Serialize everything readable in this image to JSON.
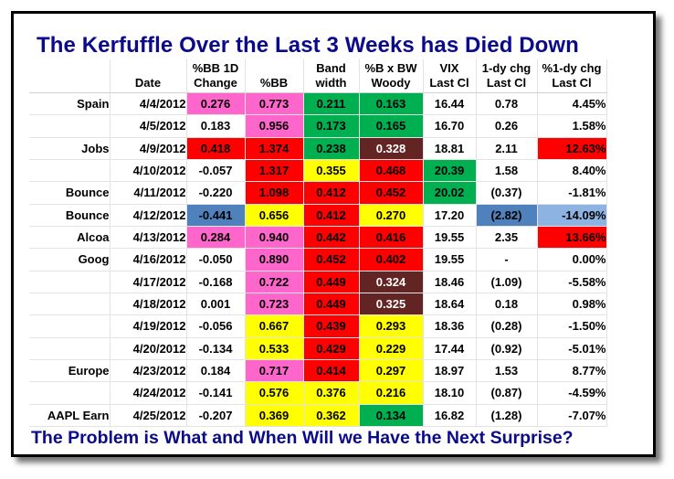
{
  "title": "The Kerfuffle Over the Last 3 Weeks has Died Down",
  "subtitle": "The Problem is What and When Will we Have the Next Surprise?",
  "colors": {
    "title_blue": "#0a0a8a",
    "pink": "#ff66cc",
    "red": "#ff0000",
    "yellow": "#ffff00",
    "green": "#00b050",
    "dark_brown": "#632523",
    "steel_blue": "#4f81bd",
    "light_blue": "#8db3e2",
    "white": "#ffffff"
  },
  "headers": [
    {
      "line1": "",
      "line2": ""
    },
    {
      "line1": "",
      "line2": "Date"
    },
    {
      "line1": "%BB 1D",
      "line2": "Change"
    },
    {
      "line1": "",
      "line2": "%BB"
    },
    {
      "line1": "Band",
      "line2": "width"
    },
    {
      "line1": "%B x BW",
      "line2": "Woody"
    },
    {
      "line1": "VIX",
      "line2": "Last Cl"
    },
    {
      "line1": "1-dy chg",
      "line2": "Last Cl"
    },
    {
      "line1": "%1-dy chg",
      "line2": "Last Cl"
    }
  ],
  "rows": [
    {
      "label": "Spain",
      "date": "4/4/2012",
      "bb1d": "0.276",
      "bb": "0.773",
      "bw": "0.211",
      "woody": "0.163",
      "vix": "16.44",
      "chg": "0.78",
      "pchg": "4.45%"
    },
    {
      "label": "",
      "date": "4/5/2012",
      "bb1d": "0.183",
      "bb": "0.956",
      "bw": "0.173",
      "woody": "0.165",
      "vix": "16.70",
      "chg": "0.26",
      "pchg": "1.58%"
    },
    {
      "label": "Jobs",
      "date": "4/9/2012",
      "bb1d": "0.418",
      "bb": "1.374",
      "bw": "0.238",
      "woody": "0.328",
      "vix": "18.81",
      "chg": "2.11",
      "pchg": "12.63%"
    },
    {
      "label": "",
      "date": "4/10/2012",
      "bb1d": "-0.057",
      "bb": "1.317",
      "bw": "0.355",
      "woody": "0.468",
      "vix": "20.39",
      "chg": "1.58",
      "pchg": "8.40%"
    },
    {
      "label": "Bounce",
      "date": "4/11/2012",
      "bb1d": "-0.220",
      "bb": "1.098",
      "bw": "0.412",
      "woody": "0.452",
      "vix": "20.02",
      "chg": "(0.37)",
      "pchg": "-1.81%"
    },
    {
      "label": "Bounce",
      "date": "4/12/2012",
      "bb1d": "-0.441",
      "bb": "0.656",
      "bw": "0.412",
      "woody": "0.270",
      "vix": "17.20",
      "chg": "(2.82)",
      "pchg": "-14.09%"
    },
    {
      "label": "Alcoa",
      "date": "4/13/2012",
      "bb1d": "0.284",
      "bb": "0.940",
      "bw": "0.442",
      "woody": "0.416",
      "vix": "19.55",
      "chg": "2.35",
      "pchg": "13.66%"
    },
    {
      "label": "Goog",
      "date": "4/16/2012",
      "bb1d": "-0.050",
      "bb": "0.890",
      "bw": "0.452",
      "woody": "0.402",
      "vix": "19.55",
      "chg": "-",
      "pchg": "0.00%"
    },
    {
      "label": "",
      "date": "4/17/2012",
      "bb1d": "-0.168",
      "bb": "0.722",
      "bw": "0.449",
      "woody": "0.324",
      "vix": "18.46",
      "chg": "(1.09)",
      "pchg": "-5.58%"
    },
    {
      "label": "",
      "date": "4/18/2012",
      "bb1d": "0.001",
      "bb": "0.723",
      "bw": "0.449",
      "woody": "0.325",
      "vix": "18.64",
      "chg": "0.18",
      "pchg": "0.98%"
    },
    {
      "label": "",
      "date": "4/19/2012",
      "bb1d": "-0.056",
      "bb": "0.667",
      "bw": "0.439",
      "woody": "0.293",
      "vix": "18.36",
      "chg": "(0.28)",
      "pchg": "-1.50%"
    },
    {
      "label": "",
      "date": "4/20/2012",
      "bb1d": "-0.134",
      "bb": "0.533",
      "bw": "0.429",
      "woody": "0.229",
      "vix": "17.44",
      "chg": "(0.92)",
      "pchg": "-5.01%"
    },
    {
      "label": "Europe",
      "date": "4/23/2012",
      "bb1d": "0.184",
      "bb": "0.717",
      "bw": "0.414",
      "woody": "0.297",
      "vix": "18.97",
      "chg": "1.53",
      "pchg": "8.77%"
    },
    {
      "label": "",
      "date": "4/24/2012",
      "bb1d": "-0.141",
      "bb": "0.576",
      "bw": "0.376",
      "woody": "0.216",
      "vix": "18.10",
      "chg": "(0.87)",
      "pchg": "-4.59%"
    },
    {
      "label": "AAPL Earn",
      "date": "4/25/2012",
      "bb1d": "-0.207",
      "bb": "0.369",
      "bw": "0.362",
      "woody": "0.134",
      "vix": "16.82",
      "chg": "(1.28)",
      "pchg": "-7.07%"
    }
  ],
  "cell_colors": {
    "bb1d": [
      "pink",
      "",
      "red",
      "",
      "",
      "steel_blue",
      "pink",
      "",
      "",
      "",
      "",
      "",
      "",
      "",
      ""
    ],
    "bb": [
      "pink",
      "pink",
      "red",
      "red",
      "red",
      "yellow",
      "pink",
      "pink",
      "pink",
      "pink",
      "yellow",
      "yellow",
      "pink",
      "yellow",
      "yellow"
    ],
    "bw": [
      "green",
      "green",
      "green",
      "yellow",
      "red",
      "red",
      "red",
      "red",
      "red",
      "red",
      "red",
      "red",
      "red",
      "yellow",
      "yellow"
    ],
    "woody": [
      "green",
      "green",
      "dark_brown",
      "red",
      "red",
      "yellow",
      "red",
      "red",
      "dark_brown",
      "dark_brown",
      "yellow",
      "yellow",
      "yellow",
      "yellow",
      "green"
    ],
    "vix": [
      "",
      "",
      "",
      "green",
      "green",
      "",
      "",
      "",
      "",
      "",
      "",
      "",
      "",
      "",
      ""
    ],
    "chg": [
      "",
      "",
      "",
      "",
      "",
      "steel_blue",
      "",
      "",
      "",
      "",
      "",
      "",
      "",
      "",
      ""
    ],
    "pchg": [
      "",
      "",
      "red",
      "",
      "",
      "light_blue",
      "red",
      "",
      "",
      "",
      "",
      "",
      "",
      "",
      ""
    ]
  }
}
